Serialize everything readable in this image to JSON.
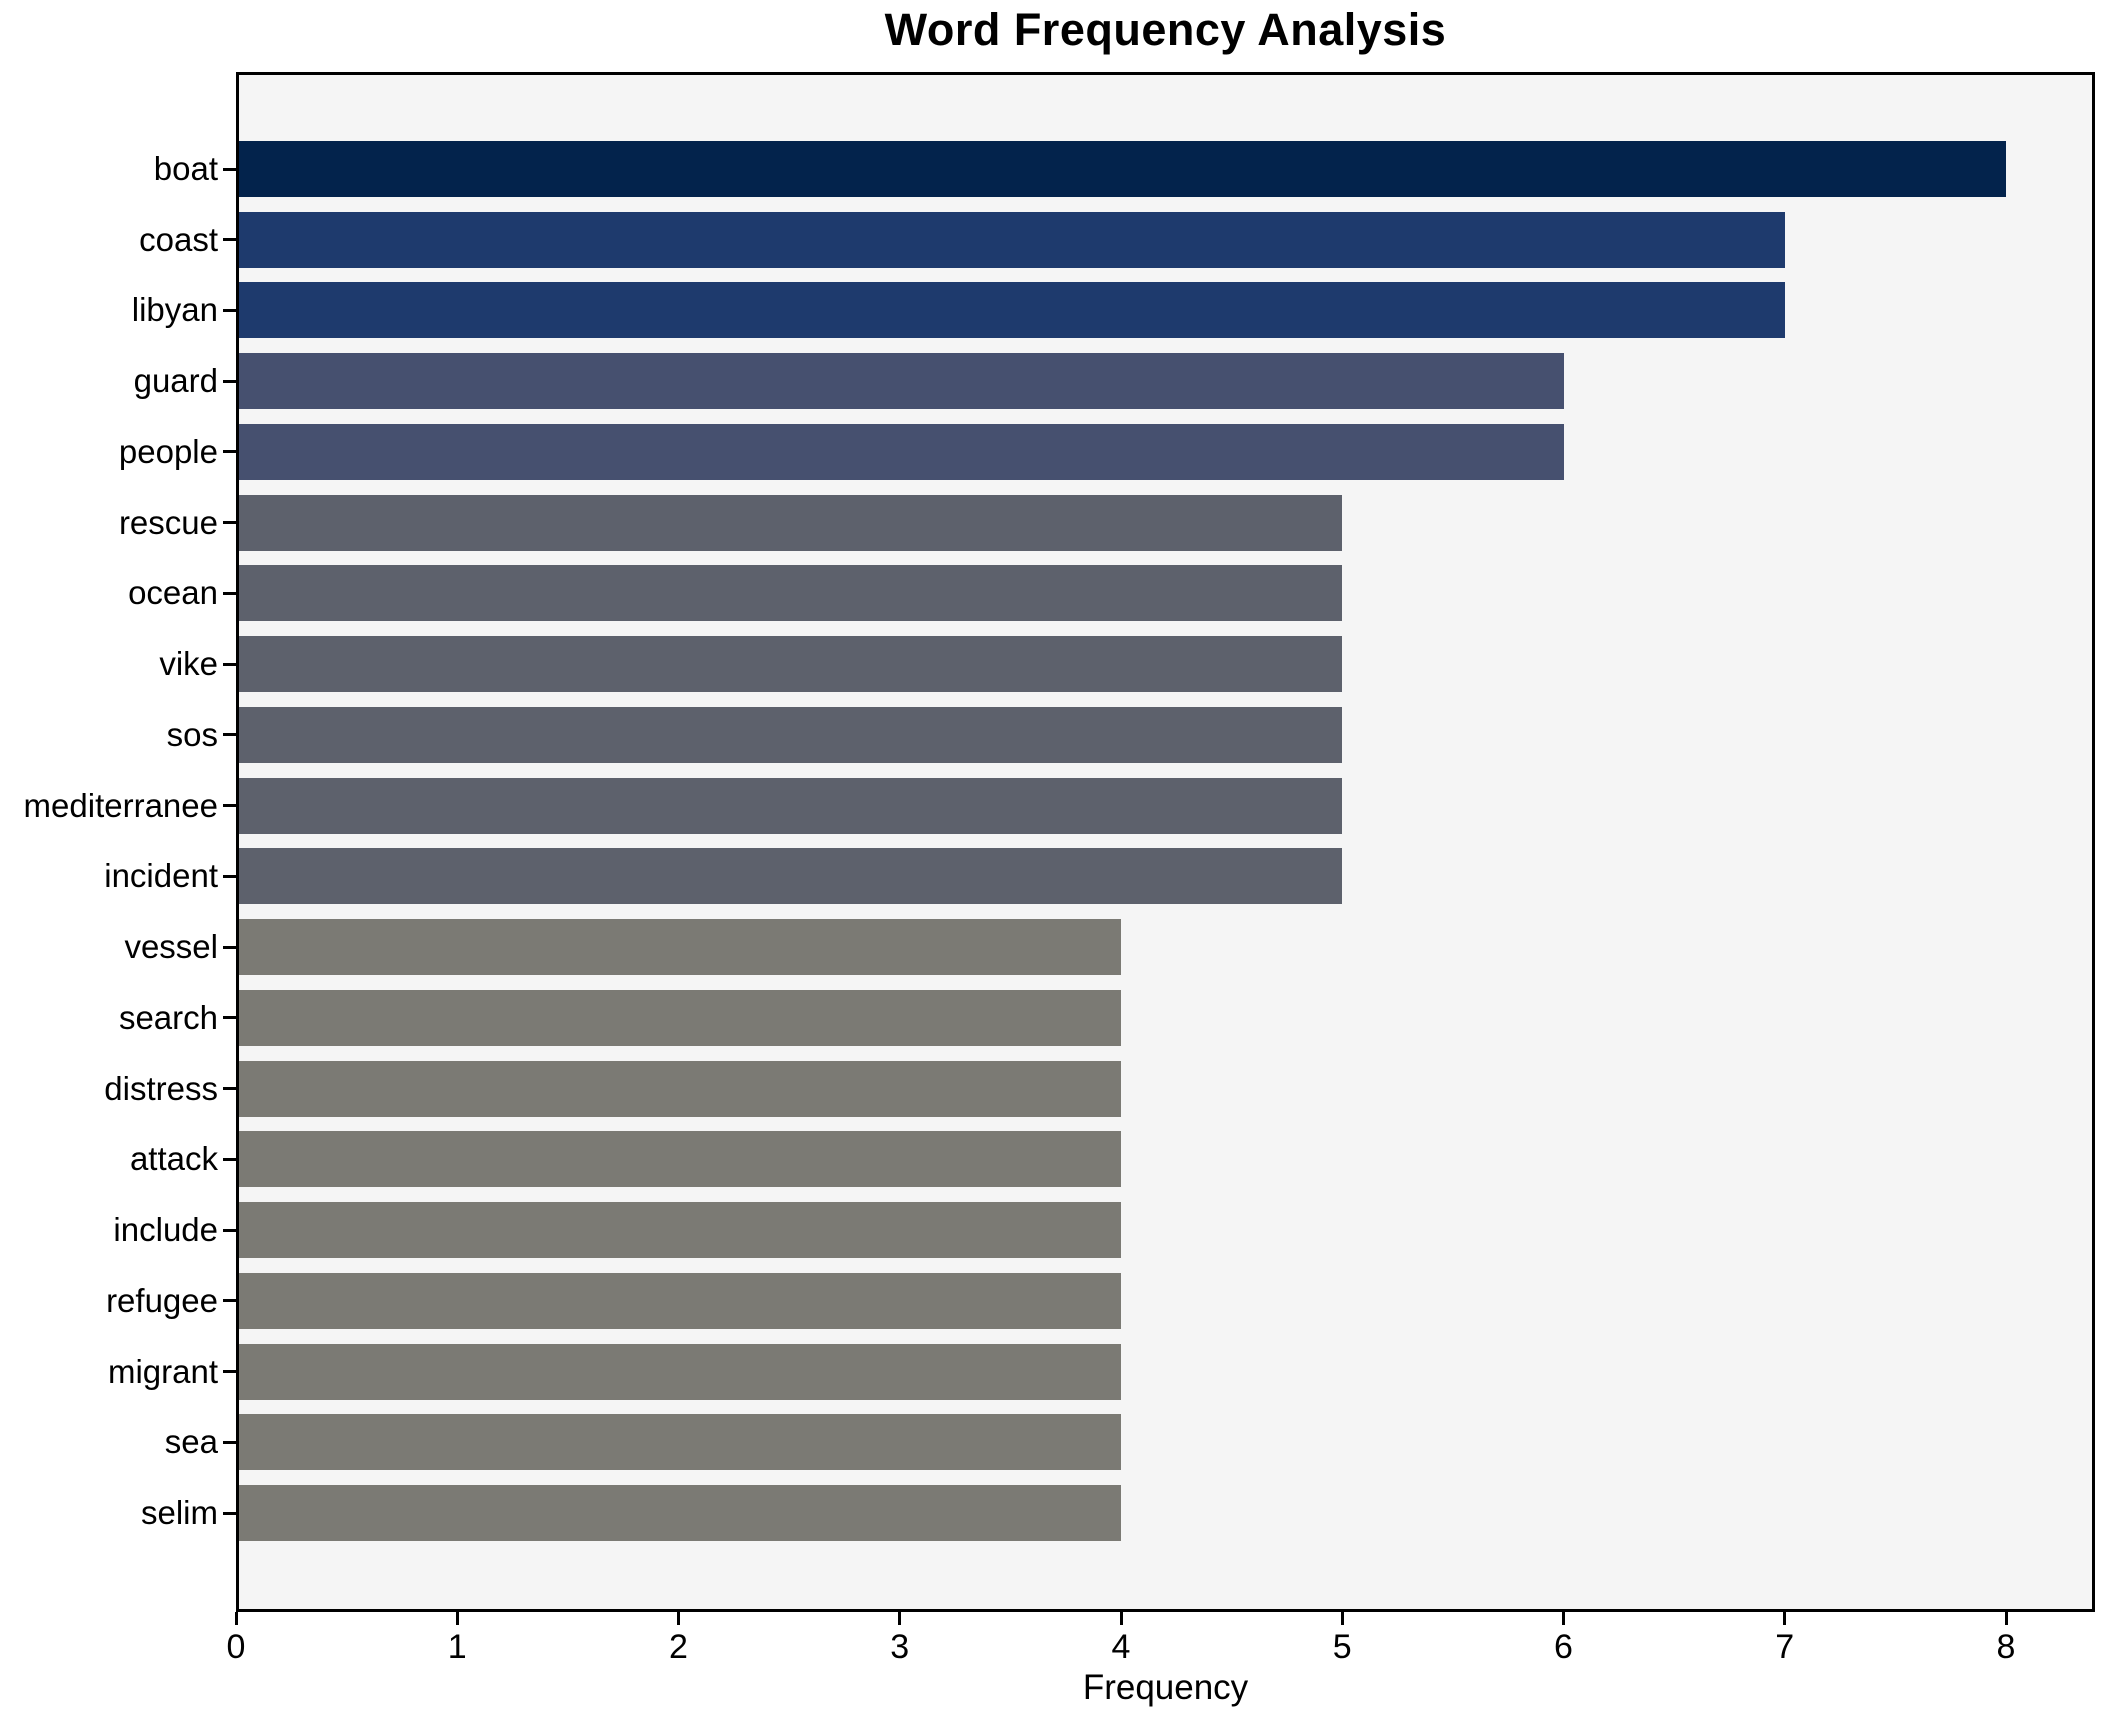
{
  "chart_data": {
    "type": "bar",
    "orientation": "horizontal",
    "title": "Word Frequency Analysis",
    "xlabel": "Frequency",
    "ylabel": "",
    "categories": [
      "boat",
      "coast",
      "libyan",
      "guard",
      "people",
      "rescue",
      "ocean",
      "vike",
      "sos",
      "mediterranee",
      "incident",
      "vessel",
      "search",
      "distress",
      "attack",
      "include",
      "refugee",
      "migrant",
      "sea",
      "selim"
    ],
    "values": [
      8,
      7,
      7,
      6,
      6,
      5,
      5,
      5,
      5,
      5,
      5,
      4,
      4,
      4,
      4,
      4,
      4,
      4,
      4,
      4
    ],
    "bar_colors": [
      "#03234c",
      "#1e3a6d",
      "#1e3a6d",
      "#46506f",
      "#46506f",
      "#5d616c",
      "#5d616c",
      "#5d616c",
      "#5d616c",
      "#5d616c",
      "#5d616c",
      "#7b7a74",
      "#7b7a74",
      "#7b7a74",
      "#7b7a74",
      "#7b7a74",
      "#7b7a74",
      "#7b7a74",
      "#7b7a74",
      "#7b7a74"
    ],
    "xticks": [
      "0",
      "1",
      "2",
      "3",
      "4",
      "5",
      "6",
      "7",
      "8"
    ],
    "xlim": [
      0,
      8.4
    ],
    "grid": false,
    "legend": false,
    "plot_background": "#f5f5f5",
    "spine_color": "#000000"
  }
}
